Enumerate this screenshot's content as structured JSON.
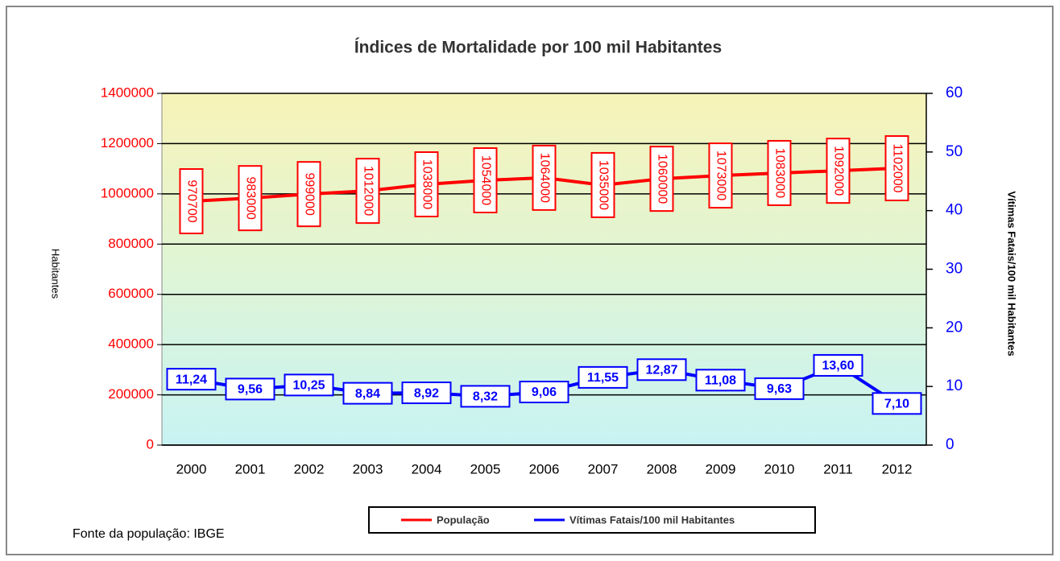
{
  "chart_data": {
    "type": "line",
    "title": "Índices de Mortalidade por 100 mil Habitantes",
    "ylabel": "Habitantes",
    "y2label": "Vítimas Fatais/100 mil Habitantes",
    "source": "Fonte da população:  IBGE",
    "categories": [
      "2000",
      "2001",
      "2002",
      "2003",
      "2004",
      "2005",
      "2006",
      "2007",
      "2008",
      "2009",
      "2010",
      "2011",
      "2012"
    ],
    "series": [
      {
        "name": "População",
        "color": "#ff0000",
        "axis": "y",
        "values": [
          970700,
          983000,
          999000,
          1012000,
          1038000,
          1054000,
          1064000,
          1035000,
          1060000,
          1073000,
          1083000,
          1092000,
          1102000
        ]
      },
      {
        "name": "Vítimas Fatais/100 mil Habitantes",
        "color": "#0000ff",
        "axis": "y2",
        "values": [
          11.24,
          9.56,
          10.25,
          8.84,
          8.92,
          8.32,
          9.06,
          11.55,
          12.87,
          11.08,
          9.63,
          13.6,
          7.1
        ],
        "value_labels": [
          "11,24",
          "9,56",
          "10,25",
          "8,84",
          "8,92",
          "8,32",
          "9,06",
          "11,55",
          "12,87",
          "11,08",
          "9,63",
          "13,60",
          "7,10"
        ]
      }
    ],
    "ylim": [
      0,
      1400000
    ],
    "yticks": [
      0,
      200000,
      400000,
      600000,
      800000,
      1000000,
      1200000,
      1400000
    ],
    "y2lim": [
      0,
      60
    ],
    "y2ticks": [
      0,
      10,
      20,
      30,
      40,
      50,
      60
    ],
    "grid": true
  }
}
